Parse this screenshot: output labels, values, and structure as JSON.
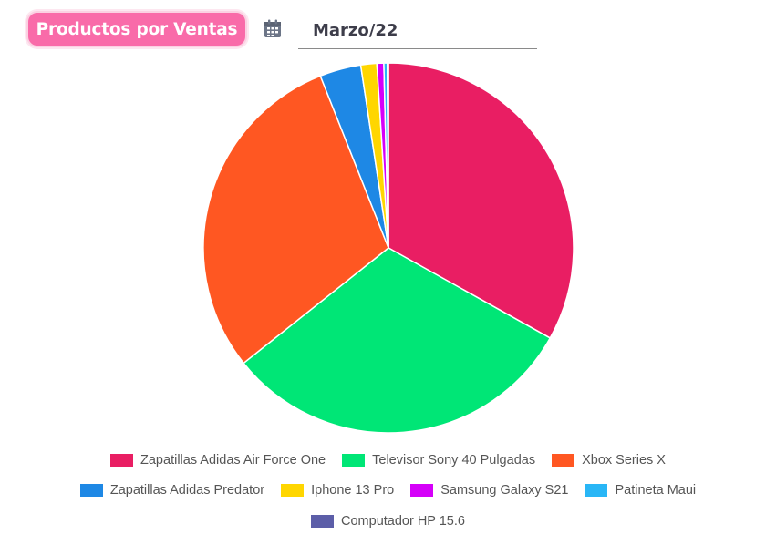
{
  "header": {
    "title": "Productos por Ventas",
    "calendar_icon": "calendar-icon",
    "date_value": "Marzo/22"
  },
  "chart_data": {
    "type": "pie",
    "title": "",
    "legend_position": "bottom",
    "slice_border_color": "#ffffff",
    "categories": [
      "Zapatillas Adidas Air Force One",
      "Televisor Sony 40 Pulgadas",
      "Xbox Series X",
      "Zapatillas Adidas Predator",
      "Iphone 13 Pro",
      "Samsung Galaxy S21",
      "Patineta Maui",
      "Computador HP 15.6"
    ],
    "values": [
      33.1,
      31.2,
      29.7,
      3.6,
      1.4,
      0.6,
      0.3,
      0.1
    ],
    "colors": [
      "#e91e63",
      "#00e676",
      "#ff5722",
      "#1e88e5",
      "#ffd600",
      "#d500f9",
      "#29b6f6",
      "#5c5ea8"
    ]
  }
}
